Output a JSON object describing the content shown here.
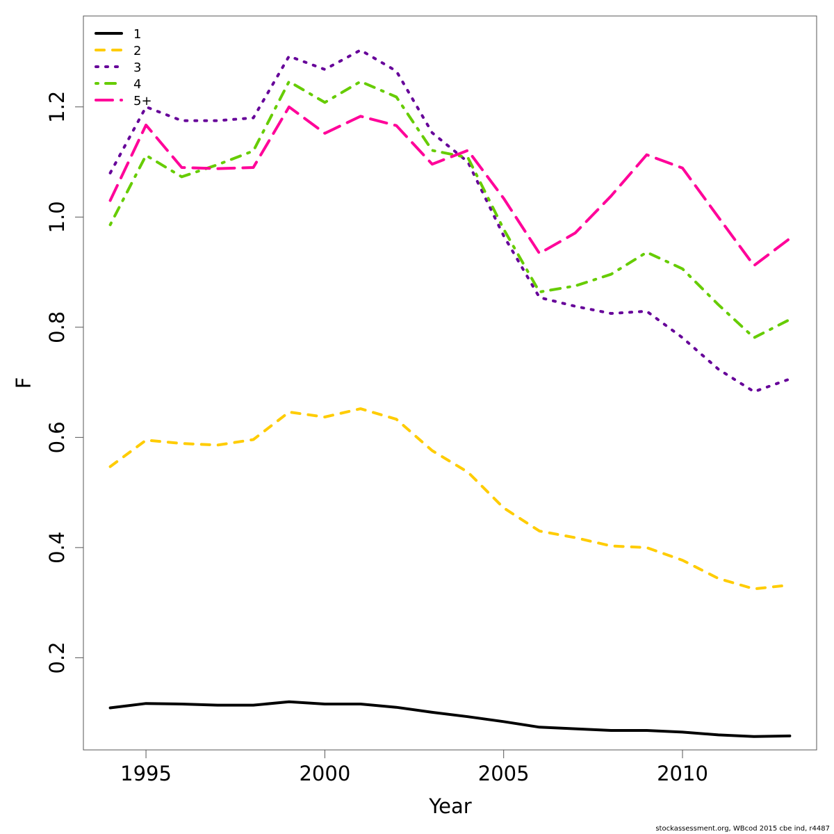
{
  "chart_data": {
    "type": "line",
    "title": "",
    "xlabel": "Year",
    "ylabel": "F",
    "xlim": [
      1993.25,
      2013.75
    ],
    "ylim": [
      0.0327,
      1.365
    ],
    "grid": false,
    "legend_position": "top-left",
    "x_ticks": [
      1995,
      2000,
      2005,
      2010
    ],
    "x_tick_labels": [
      "1995",
      "2000",
      "2005",
      "2010"
    ],
    "y_ticks": [
      0.2,
      0.4,
      0.6,
      0.8,
      1.0,
      1.2
    ],
    "y_tick_labels": [
      "0.2",
      "0.4",
      "0.6",
      "0.8",
      "1.0",
      "1.2"
    ],
    "x": [
      1994,
      1995,
      1996,
      1997,
      1998,
      1999,
      2000,
      2001,
      2002,
      2003,
      2004,
      2005,
      2006,
      2007,
      2008,
      2009,
      2010,
      2011,
      2012,
      2013
    ],
    "series": [
      {
        "name": "1",
        "color": "#000000",
        "dash": "solid",
        "values": [
          0.109,
          0.117,
          0.116,
          0.114,
          0.114,
          0.12,
          0.116,
          0.116,
          0.11,
          0.101,
          0.093,
          0.084,
          0.074,
          0.071,
          0.068,
          0.068,
          0.065,
          0.06,
          0.057,
          0.058
        ]
      },
      {
        "name": "2",
        "color": "#FFCC00",
        "dash": "dashed",
        "values": [
          0.547,
          0.595,
          0.589,
          0.586,
          0.596,
          0.646,
          0.637,
          0.652,
          0.633,
          0.576,
          0.537,
          0.472,
          0.43,
          0.418,
          0.403,
          0.4,
          0.377,
          0.344,
          0.325,
          0.332
        ]
      },
      {
        "name": "3",
        "color": "#660099",
        "dash": "dotted",
        "values": [
          1.08,
          1.2,
          1.175,
          1.175,
          1.18,
          1.292,
          1.268,
          1.303,
          1.265,
          1.153,
          1.1,
          0.966,
          0.854,
          0.838,
          0.825,
          0.829,
          0.781,
          0.724,
          0.683,
          0.706
        ]
      },
      {
        "name": "4",
        "color": "#66CC00",
        "dash": "dotdash",
        "values": [
          0.986,
          1.112,
          1.073,
          1.095,
          1.12,
          1.246,
          1.208,
          1.246,
          1.218,
          1.121,
          1.108,
          0.978,
          0.864,
          0.875,
          0.896,
          0.936,
          0.906,
          0.841,
          0.781,
          0.814
        ]
      },
      {
        "name": "5+",
        "color": "#FF0099",
        "dash": "longdash",
        "values": [
          1.03,
          1.167,
          1.09,
          1.088,
          1.09,
          1.2,
          1.152,
          1.183,
          1.166,
          1.096,
          1.121,
          1.034,
          0.934,
          0.971,
          1.038,
          1.113,
          1.089,
          1.0,
          0.912,
          0.961
        ]
      }
    ]
  },
  "footer": {
    "credit": "stockassessment.org, WBcod 2015 cbe ind, r4487"
  }
}
